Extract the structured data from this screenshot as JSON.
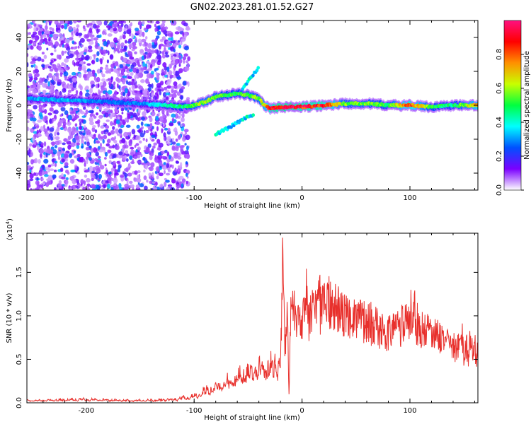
{
  "figure": {
    "title": "GN02.2023.281.01.52.G27"
  },
  "colorbar": {
    "label": "Normalized spectral amplitude",
    "ticks": [
      "0.0",
      "0.2",
      "0.4",
      "0.6",
      "0.8"
    ],
    "tick_values": [
      0.0,
      0.2,
      0.4,
      0.6,
      0.8
    ],
    "range": [
      0,
      1
    ],
    "colormap": [
      "#ffffff",
      "#7b00ff",
      "#0050ff",
      "#00ffff",
      "#00ff40",
      "#c8ff00",
      "#ff9000",
      "#ff0000",
      "#ff1080"
    ]
  },
  "chart_data": [
    {
      "type": "heatmap",
      "title": "",
      "xlabel": "Height of straight line (km)",
      "ylabel": "Frequency (Hz)",
      "xlim": [
        -255,
        163
      ],
      "ylim": [
        -50,
        50
      ],
      "xticks": [
        -200,
        -100,
        0,
        100
      ],
      "xtick_labels": [
        "-200",
        "-100",
        "0",
        "100"
      ],
      "yticks": [
        -40,
        -20,
        0,
        20,
        40
      ],
      "ytick_labels": [
        "-40",
        "-20",
        "0",
        "20",
        "40"
      ],
      "ridge": {
        "x": [
          -255,
          -220,
          -180,
          -150,
          -125,
          -110,
          -100,
          -90,
          -80,
          -70,
          -60,
          -50,
          -40,
          -35,
          -30,
          -20,
          -10,
          0,
          20,
          40,
          60,
          80,
          100,
          120,
          140,
          163
        ],
        "freq": [
          4,
          3,
          2,
          1,
          0,
          -1,
          0,
          2,
          5,
          6,
          7,
          6,
          4,
          0,
          -2,
          -1,
          -1,
          -1,
          0,
          1,
          1,
          0,
          0,
          -1,
          0,
          0
        ],
        "peak_amplitude": [
          0.35,
          0.35,
          0.3,
          0.3,
          0.45,
          0.5,
          0.6,
          0.65,
          0.6,
          0.55,
          0.55,
          0.6,
          0.6,
          0.7,
          0.9,
          1.0,
          1.0,
          0.95,
          0.95,
          0.6,
          0.6,
          0.55,
          0.9,
          0.55,
          0.5,
          0.8
        ]
      },
      "branches": [
        {
          "x": [
            -55,
            -50,
            -45,
            -40
          ],
          "freq": [
            10,
            14,
            18,
            22
          ],
          "amplitude": 0.35
        },
        {
          "x": [
            -80,
            -70,
            -60,
            -50,
            -45
          ],
          "freq": [
            -17,
            -14,
            -10,
            -7,
            -5
          ],
          "amplitude": 0.35
        }
      ],
      "noise_region": {
        "x": [
          -255,
          -105
        ],
        "amplitude": 0.3
      }
    },
    {
      "type": "line",
      "title": "",
      "xlabel": "Height of straight line (km)",
      "ylabel": "SNR (10 * v/v)",
      "y_multiplier": "(x10",
      "y_multiplier_exp": "4",
      "y_multiplier_close": ")",
      "xlim": [
        -255,
        163
      ],
      "ylim": [
        0,
        1.95
      ],
      "xticks": [
        -200,
        -100,
        0,
        100
      ],
      "xtick_labels": [
        "-200",
        "-100",
        "0",
        "100"
      ],
      "yticks": [
        0,
        0.5,
        1.0,
        1.5
      ],
      "ytick_labels": [
        "0.0",
        "0.5",
        "1.0",
        "1.5"
      ],
      "series": [
        {
          "color": "#e8302c",
          "x": [
            -255,
            -200,
            -150,
            -120,
            -100,
            -90,
            -80,
            -70,
            -60,
            -50,
            -40,
            -30,
            -20,
            -18,
            -16,
            -14,
            -12,
            -10,
            0,
            10,
            20,
            25,
            30,
            40,
            50,
            60,
            70,
            80,
            90,
            100,
            110,
            120,
            130,
            140,
            150,
            160,
            163
          ],
          "y": [
            0.02,
            0.03,
            0.02,
            0.03,
            0.05,
            0.1,
            0.15,
            0.2,
            0.25,
            0.3,
            0.35,
            0.4,
            0.45,
            1.95,
            0.3,
            1.1,
            0.05,
            1.05,
            1.1,
            1.3,
            1.4,
            1.45,
            1.3,
            1.25,
            1.2,
            1.15,
            1.1,
            1.0,
            1.05,
            1.15,
            1.0,
            0.9,
            0.85,
            0.75,
            0.7,
            0.65,
            0.8
          ],
          "envelope": [
            0.04,
            0.06,
            0.04,
            0.06,
            0.12,
            0.2,
            0.26,
            0.32,
            0.42,
            0.55,
            0.6,
            0.62,
            0.7,
            1.95,
            1.5,
            1.5,
            1.5,
            1.6,
            1.5,
            1.62,
            1.6,
            1.62,
            1.5,
            1.3,
            1.25,
            1.2,
            1.15,
            1.05,
            1.15,
            1.45,
            1.2,
            1.1,
            1.0,
            0.95,
            0.9,
            0.9,
            0.85
          ]
        }
      ]
    }
  ]
}
